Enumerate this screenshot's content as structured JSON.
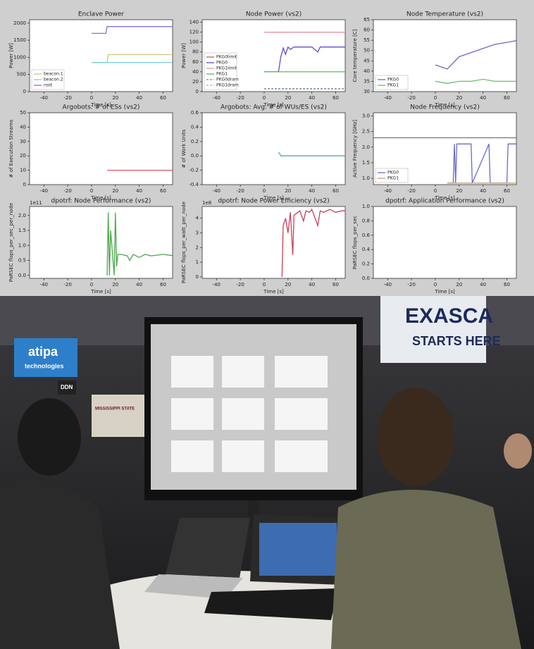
{
  "chart_data": [
    {
      "type": "line",
      "title": "Enclave Power",
      "xlabel": "Time [s]",
      "ylabel": "Power [W]",
      "xlim": [
        -52,
        68
      ],
      "ylim": [
        0,
        2100
      ],
      "xticks": [
        -40,
        -20,
        0,
        20,
        40,
        60
      ],
      "yticks": [
        0,
        500,
        1000,
        1500,
        2000
      ],
      "legend": "lower left",
      "series": [
        {
          "name": "beacon.1",
          "color": "#c9c97a",
          "x": [
            0,
            13,
            14,
            70
          ],
          "values": [
            850,
            850,
            1080,
            1080
          ]
        },
        {
          "name": "beacon.2",
          "color": "#7ecfcf",
          "x": [
            0,
            70
          ],
          "values": [
            850,
            850
          ]
        },
        {
          "name": "root",
          "color": "#8a6fd1",
          "x": [
            0,
            12,
            13,
            70
          ],
          "values": [
            1700,
            1700,
            1900,
            1900
          ]
        }
      ]
    },
    {
      "type": "line",
      "title": "Node Power (vs2)",
      "xlabel": "Time [s]",
      "ylabel": "Power [W]",
      "xlim": [
        -52,
        68
      ],
      "ylim": [
        0,
        145
      ],
      "xticks": [
        -40,
        -20,
        0,
        20,
        40,
        60
      ],
      "yticks": [
        0,
        20,
        40,
        60,
        80,
        100,
        120,
        140
      ],
      "legend": "lower left",
      "series": [
        {
          "name": "PKG0limit",
          "color": "#d9536b",
          "x": [
            0,
            70
          ],
          "values": [
            120,
            120
          ]
        },
        {
          "name": "PKG0",
          "color": "#5b4fcf",
          "x": [
            0,
            12,
            14,
            16,
            18,
            20,
            22,
            25,
            30,
            40,
            45,
            47,
            50,
            60,
            70
          ],
          "values": [
            40,
            40,
            70,
            88,
            75,
            90,
            85,
            90,
            90,
            90,
            80,
            90,
            90,
            90,
            90
          ]
        },
        {
          "name": "PKG1limit",
          "color": "#e89aa6",
          "x": [
            0,
            70
          ],
          "values": [
            120,
            120
          ]
        },
        {
          "name": "PKG1",
          "color": "#5cb85c",
          "x": [
            0,
            70
          ],
          "values": [
            40,
            40
          ]
        },
        {
          "name": "PKG0dram",
          "color": "#888888",
          "dash": "3,2",
          "x": [
            0,
            70
          ],
          "values": [
            6,
            6
          ]
        },
        {
          "name": "PKG1dram",
          "color": "#8fb3d9",
          "dash": "3,2",
          "x": [
            0,
            70
          ],
          "values": [
            5,
            5
          ]
        }
      ]
    },
    {
      "type": "line",
      "title": "Node Temperature (vs2)",
      "xlabel": "Time [s]",
      "ylabel": "Core temperature [C]",
      "xlim": [
        -52,
        68
      ],
      "ylim": [
        30,
        65
      ],
      "xticks": [
        -40,
        -20,
        0,
        20,
        40,
        60
      ],
      "yticks": [
        30,
        35,
        40,
        45,
        50,
        55,
        60,
        65
      ],
      "legend": "lower left",
      "series": [
        {
          "name": "PKG0",
          "color": "#6a6ad0",
          "x": [
            0,
            5,
            10,
            15,
            20,
            30,
            40,
            50,
            60,
            70
          ],
          "values": [
            43,
            42,
            41,
            44,
            47,
            49,
            51,
            53,
            54,
            55
          ]
        },
        {
          "name": "PKG1",
          "color": "#6bbf6b",
          "x": [
            0,
            10,
            20,
            30,
            40,
            50,
            60,
            70
          ],
          "values": [
            35,
            34,
            35,
            35,
            36,
            35,
            35,
            35
          ]
        }
      ]
    },
    {
      "type": "line",
      "title": "Argobots: # of ESs (vs2)",
      "xlabel": "Time [s]",
      "ylabel": "# of Execution Streams",
      "xlim": [
        -52,
        68
      ],
      "ylim": [
        0,
        50
      ],
      "xticks": [
        -40,
        -20,
        0,
        20,
        40,
        60
      ],
      "yticks": [
        0,
        10,
        20,
        30,
        40,
        50
      ],
      "series": [
        {
          "color": "#d9536b",
          "x": [
            13,
            70
          ],
          "values": [
            10,
            10
          ]
        }
      ]
    },
    {
      "type": "line",
      "title": "Argobots: Avg. # of WUs/ES (vs2)",
      "xlabel": "Time [s]",
      "ylabel": "# of Work Units",
      "xlim": [
        -52,
        68
      ],
      "ylim": [
        -0.4,
        0.6
      ],
      "xticks": [
        -40,
        -20,
        0,
        20,
        40,
        60
      ],
      "yticks": [
        -0.4,
        -0.2,
        {
          "value": 0,
          "label": "0.0"
        },
        0.2,
        0.4,
        0.6
      ],
      "series": [
        {
          "color": "#55aaaa",
          "x": [
            12,
            13,
            14,
            70
          ],
          "values": [
            0.05,
            0.03,
            0,
            0
          ]
        }
      ]
    },
    {
      "type": "line",
      "title": "Node Frequency (vs2)",
      "xlabel": "Time [s]",
      "ylabel": "Active Frequency [GHz]",
      "xlim": [
        -52,
        68
      ],
      "ylim": [
        0.8,
        3.1
      ],
      "xticks": [
        -40,
        -20,
        0,
        20,
        40,
        60
      ],
      "yticks": [
        {
          "value": 1,
          "label": "1.0"
        },
        1.5,
        {
          "value": 2,
          "label": "2.0"
        },
        2.5,
        {
          "value": 3,
          "label": "3.0"
        }
      ],
      "legend": "lower left",
      "series": [
        {
          "color": "#777777",
          "x": [
            -52,
            68
          ],
          "values": [
            2.3,
            2.3
          ]
        },
        {
          "name": "PKG0",
          "color": "#6a6ad0",
          "x": [
            10,
            15,
            16,
            17,
            18,
            30,
            31,
            45,
            46,
            60,
            61,
            70
          ],
          "values": [
            0.85,
            0.85,
            2.1,
            0.85,
            2.1,
            2.1,
            0.85,
            2.1,
            0.85,
            0.85,
            2.1,
            2.1
          ]
        },
        {
          "name": "PKG1",
          "color": "#c9a060",
          "x": [
            10,
            70
          ],
          "values": [
            0.85,
            0.85
          ]
        }
      ]
    },
    {
      "type": "line",
      "title": "dpotrf: Node Performance (vs2)",
      "xlabel": "Time [s]",
      "ylabel": "PaRSEC flops_per_sec_per_node",
      "offset_text": "1e11",
      "xlim": [
        -52,
        68
      ],
      "ylim": [
        -0.1,
        2.3
      ],
      "xticks": [
        -40,
        -20,
        0,
        20,
        40,
        60
      ],
      "yticks": [
        {
          "value": 0,
          "label": "0.0"
        },
        0.5,
        {
          "value": 1,
          "label": "1.0"
        },
        1.5,
        {
          "value": 2,
          "label": "2.0"
        }
      ],
      "series": [
        {
          "color": "#4ca84c",
          "x": [
            13,
            14,
            15,
            16,
            19,
            20,
            21,
            22,
            25,
            30,
            32,
            35,
            40,
            45,
            50,
            60,
            70
          ],
          "values": [
            0,
            2.1,
            0,
            1.5,
            0,
            2.1,
            0.3,
            0.7,
            0.7,
            0.65,
            0.5,
            0.7,
            0.6,
            0.7,
            0.65,
            0.7,
            0.65
          ]
        }
      ]
    },
    {
      "type": "line",
      "title": "dpotrf: Node Power Efficiency (vs2)",
      "xlabel": "Time [s]",
      "ylabel": "PaRSEC flops_per_watt_per_node",
      "offset_text": "1e8",
      "xlim": [
        -52,
        68
      ],
      "ylim": [
        -0.1,
        4.8
      ],
      "xticks": [
        -40,
        -20,
        0,
        20,
        40,
        60
      ],
      "yticks": [
        0,
        1,
        2,
        3,
        4
      ],
      "series": [
        {
          "color": "#c8405a",
          "x": [
            15,
            16,
            18,
            20,
            22,
            24,
            25,
            30,
            33,
            35,
            38,
            40,
            45,
            47,
            50,
            55,
            60,
            65,
            70
          ],
          "values": [
            0,
            3.5,
            4,
            3,
            4.4,
            1.5,
            4.2,
            4.5,
            3.8,
            4.5,
            4.4,
            4.6,
            3.5,
            4.5,
            4.4,
            4.6,
            4.4,
            4.5,
            4.5
          ]
        }
      ]
    },
    {
      "type": "line",
      "title": "dpotrf: Application Performance (vs2)",
      "xlabel": "Time [s]",
      "ylabel": "PaRSEC flops_per_sec",
      "xlim": [
        -52,
        68
      ],
      "ylim": [
        0,
        1
      ],
      "xticks": [
        -40,
        -20,
        0,
        20,
        40,
        60
      ],
      "yticks": [
        {
          "value": 0,
          "label": "0.0"
        },
        0.2,
        0.4,
        0.6,
        0.8,
        {
          "value": 1,
          "label": "1.0"
        }
      ],
      "series": []
    }
  ],
  "photo": {
    "signs": [
      "EXASCA",
      "STARTS HERE",
      "atipa",
      "technologies",
      "DDN",
      "MISSISSIPPI STATE"
    ]
  }
}
